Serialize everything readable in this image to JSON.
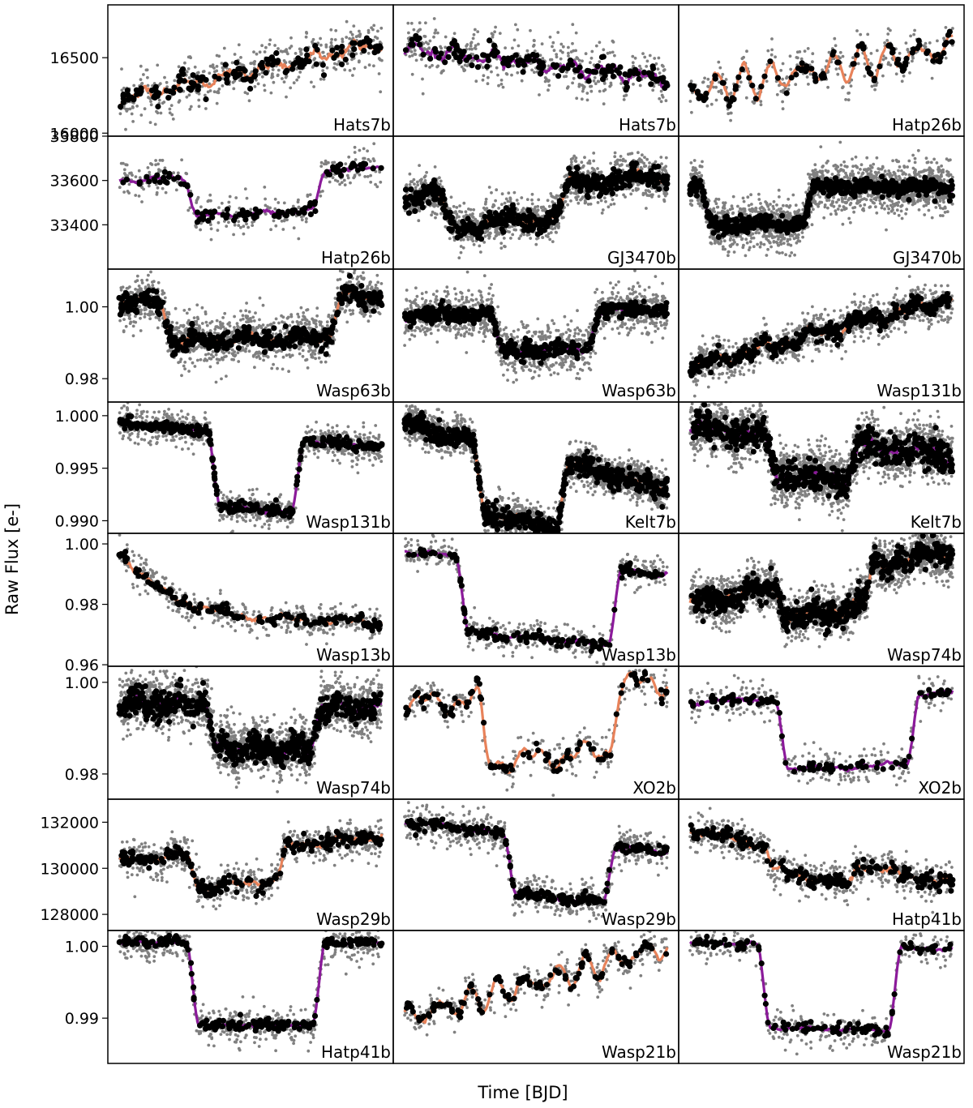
{
  "chart_data": {
    "type": "scatter",
    "title": "",
    "xlabel": "Time [BJD]",
    "ylabel": "Raw Flux [e-]",
    "grid": false,
    "series_styles": {
      "raw_points": "#808080",
      "binned_points": "#000000",
      "model_line_a": "#E8825A",
      "model_line_b": "#8B1A9A"
    },
    "rows": [
      {
        "y_ticks": [
          16000,
          16500
        ],
        "y_tick_labels": [
          "16000",
          "16500"
        ],
        "ylim": [
          15980,
          16850
        ],
        "panels": [
          {
            "label": "Hats7b",
            "shape": "ramp",
            "start": 16220,
            "end": 16600,
            "depth": 0,
            "noise": 0.1,
            "bin_noise": 0.04,
            "wiggle": 0.05,
            "line": "orange",
            "n": 420
          },
          {
            "label": "Hats7b",
            "shape": "ramp",
            "start": 16560,
            "end": 16360,
            "depth": 0,
            "noise": 0.1,
            "bin_noise": 0.04,
            "wiggle": 0.06,
            "line": "purple",
            "n": 420
          },
          {
            "label": "Hatp26b",
            "shape": "zigzag",
            "start": 16280,
            "end": 16560,
            "depth": 0,
            "noise": 0.08,
            "bin_noise": 0.02,
            "wiggle": 0.16,
            "line": "orange",
            "n": 300
          }
        ]
      },
      {
        "y_ticks": [
          33400,
          33600,
          33800
        ],
        "y_tick_labels": [
          "33400",
          "33600",
          "33800"
        ],
        "ylim": [
          33200,
          33800
        ],
        "panels": [
          {
            "label": "Hatp26b",
            "shape": "transit",
            "start": 33600,
            "end": 33660,
            "depth": 180,
            "t1": 0.27,
            "t2": 0.76,
            "noise": 0.07,
            "bin_noise": 0.02,
            "wiggle": 0.02,
            "line": "purple",
            "n": 300
          },
          {
            "label": "GJ3470b",
            "shape": "transit",
            "start": 33530,
            "end": 33620,
            "depth": 150,
            "t1": 0.15,
            "t2": 0.6,
            "noise": 0.08,
            "bin_noise": 0.04,
            "wiggle": 0.05,
            "line": "orange",
            "n": 1400
          },
          {
            "label": "GJ3470b",
            "shape": "transit",
            "start": 33570,
            "end": 33570,
            "depth": 170,
            "t1": 0.06,
            "t2": 0.45,
            "noise": 0.09,
            "bin_noise": 0.03,
            "wiggle": 0.02,
            "line": "purple",
            "n": 1700
          }
        ]
      },
      {
        "y_ticks": [
          0.98,
          1.0
        ],
        "y_tick_labels": [
          "0.98",
          "1.00"
        ],
        "ylim": [
          0.9735,
          1.0105
        ],
        "panels": [
          {
            "label": "Wasp63b",
            "shape": "transit",
            "start": 1.001,
            "end": 1.003,
            "depth": 0.011,
            "t1": 0.18,
            "t2": 0.82,
            "noise": 0.09,
            "bin_noise": 0.04,
            "wiggle": 0.04,
            "line": "orange",
            "n": 1300
          },
          {
            "label": "Wasp63b",
            "shape": "transit",
            "start": 0.9975,
            "end": 0.9995,
            "depth": 0.0105,
            "t1": 0.35,
            "t2": 0.72,
            "noise": 0.09,
            "bin_noise": 0.03,
            "wiggle": 0.02,
            "line": "purple",
            "n": 1300
          },
          {
            "label": "Wasp131b",
            "shape": "ramp",
            "start": 0.983,
            "end": 1.0025,
            "depth": 0,
            "noise": 0.07,
            "bin_noise": 0.03,
            "wiggle": 0.05,
            "line": "orange",
            "n": 1100
          }
        ]
      },
      {
        "y_ticks": [
          0.99,
          0.995,
          1.0
        ],
        "y_tick_labels": [
          "0.990",
          "0.995",
          "1.000"
        ],
        "ylim": [
          0.9888,
          1.0013
        ],
        "panels": [
          {
            "label": "Wasp131b",
            "shape": "transit",
            "start": 0.9993,
            "end": 0.997,
            "depth": 0.007,
            "t1": 0.36,
            "t2": 0.68,
            "noise": 0.06,
            "bin_noise": 0.02,
            "wiggle": 0.01,
            "line": "purple",
            "n": 900
          },
          {
            "label": "Kelt7b",
            "shape": "transit",
            "start": 0.9992,
            "end": 0.993,
            "depth": 0.0065,
            "t1": 0.28,
            "t2": 0.6,
            "noise": 0.07,
            "bin_noise": 0.04,
            "wiggle": 0.03,
            "line": "orange",
            "n": 2200
          },
          {
            "label": "Kelt7b",
            "shape": "transit",
            "start": 0.999,
            "end": 0.9962,
            "depth": 0.0035,
            "t1": 0.3,
            "t2": 0.62,
            "noise": 0.1,
            "bin_noise": 0.06,
            "wiggle": 0.05,
            "line": "purple",
            "n": 2200
          }
        ]
      },
      {
        "y_ticks": [
          0.96,
          0.98,
          1.0
        ],
        "y_tick_labels": [
          "0.96",
          "0.98",
          "1.00"
        ],
        "ylim": [
          0.9595,
          1.0035
        ],
        "panels": [
          {
            "label": "Wasp13b",
            "shape": "decay",
            "start": 0.998,
            "end": 0.974,
            "depth": 0,
            "noise": 0.06,
            "bin_noise": 0.02,
            "wiggle": 0.03,
            "line": "orange",
            "n": 450
          },
          {
            "label": "Wasp13b",
            "shape": "transit",
            "start": 0.9975,
            "end": 0.99,
            "depth": 0.025,
            "t1": 0.22,
            "t2": 0.8,
            "noise": 0.06,
            "bin_noise": 0.02,
            "wiggle": 0.02,
            "line": "purple",
            "n": 450
          },
          {
            "label": "Wasp74b",
            "shape": "transit",
            "start": 0.98,
            "end": 0.998,
            "depth": 0.012,
            "t1": 0.35,
            "t2": 0.68,
            "noise": 0.09,
            "bin_noise": 0.05,
            "wiggle": 0.05,
            "line": "orange",
            "n": 1900
          }
        ]
      },
      {
        "y_ticks": [
          0.98,
          1.0
        ],
        "y_tick_labels": [
          "0.98",
          "1.00"
        ],
        "ylim": [
          0.9745,
          1.0035
        ],
        "panels": [
          {
            "label": "Wasp74b",
            "shape": "transit",
            "start": 0.9955,
            "end": 0.9945,
            "depth": 0.0095,
            "t1": 0.35,
            "t2": 0.75,
            "noise": 0.1,
            "bin_noise": 0.05,
            "wiggle": 0.04,
            "line": "purple",
            "n": 1900
          },
          {
            "label": "XO2b",
            "shape": "transit",
            "start": 0.995,
            "end": 1.0,
            "depth": 0.014,
            "t1": 0.3,
            "t2": 0.8,
            "noise": 0.07,
            "bin_noise": 0.03,
            "wiggle": 0.1,
            "line": "orange",
            "n": 300
          },
          {
            "label": "XO2b",
            "shape": "transit",
            "start": 0.9955,
            "end": 0.998,
            "depth": 0.0155,
            "t1": 0.35,
            "t2": 0.85,
            "noise": 0.07,
            "bin_noise": 0.02,
            "wiggle": 0.02,
            "line": "purple",
            "n": 300
          }
        ]
      },
      {
        "y_ticks": [
          128000,
          130000,
          132000
        ],
        "y_tick_labels": [
          "128000",
          "130000",
          "132000"
        ],
        "ylim": [
          127300,
          133000
        ],
        "panels": [
          {
            "label": "Wasp29b",
            "shape": "transit",
            "start": 130300,
            "end": 131400,
            "depth": 1500,
            "t1": 0.28,
            "t2": 0.62,
            "noise": 0.07,
            "bin_noise": 0.03,
            "wiggle": 0.03,
            "line": "orange",
            "n": 650
          },
          {
            "label": "Wasp29b",
            "shape": "transit",
            "start": 132000,
            "end": 130700,
            "depth": 2500,
            "t1": 0.4,
            "t2": 0.78,
            "noise": 0.07,
            "bin_noise": 0.02,
            "wiggle": 0.02,
            "line": "purple",
            "n": 650
          },
          {
            "label": "Hatp41b",
            "shape": "transit",
            "start": 131700,
            "end": 129300,
            "depth": 1000,
            "t1": 0.3,
            "t2": 0.62,
            "noise": 0.07,
            "bin_noise": 0.03,
            "wiggle": 0.03,
            "line": "orange",
            "n": 650
          }
        ]
      },
      {
        "y_ticks": [
          0.99,
          1.0
        ],
        "y_tick_labels": [
          "0.99",
          "1.00"
        ],
        "ylim": [
          0.9837,
          1.0022
        ],
        "panels": [
          {
            "label": "Hatp41b",
            "shape": "transit",
            "start": 1.0005,
            "end": 1.0005,
            "depth": 0.0115,
            "t1": 0.28,
            "t2": 0.76,
            "noise": 0.07,
            "bin_noise": 0.02,
            "wiggle": 0.01,
            "line": "purple",
            "n": 550
          },
          {
            "label": "Wasp21b",
            "shape": "zigzag",
            "start": 0.99,
            "end": 1.0,
            "depth": 0,
            "noise": 0.07,
            "bin_noise": 0.02,
            "wiggle": 0.13,
            "line": "orange",
            "n": 350
          },
          {
            "label": "Wasp21b",
            "shape": "transit",
            "start": 1.0005,
            "end": 0.9995,
            "depth": 0.0115,
            "t1": 0.28,
            "t2": 0.78,
            "noise": 0.07,
            "bin_noise": 0.02,
            "wiggle": 0.01,
            "line": "purple",
            "n": 350
          }
        ]
      }
    ]
  }
}
